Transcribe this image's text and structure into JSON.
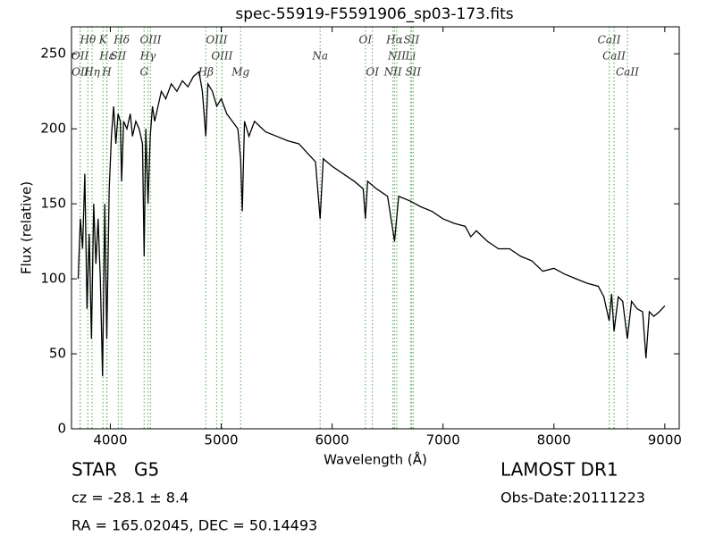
{
  "chart_data": {
    "type": "line",
    "title": "spec-55919-F5591906_sp03-173.fits",
    "x_label": "Wavelength (Å)",
    "y_label": "Flux (relative)",
    "xlim": [
      3650,
      9130
    ],
    "ylim": [
      0,
      268
    ],
    "xticks": [
      4000,
      5000,
      6000,
      7000,
      8000,
      9000
    ],
    "yticks": [
      0,
      50,
      100,
      150,
      200,
      250
    ],
    "series": [
      {
        "color": "#000000",
        "x": [
          3710,
          3730,
          3750,
          3770,
          3790,
          3810,
          3830,
          3850,
          3870,
          3890,
          3910,
          3930,
          3950,
          3968,
          3990,
          4010,
          4030,
          4050,
          4070,
          4090,
          4102,
          4120,
          4150,
          4180,
          4200,
          4230,
          4260,
          4290,
          4305,
          4320,
          4340,
          4360,
          4380,
          4400,
          4430,
          4460,
          4500,
          4550,
          4600,
          4650,
          4700,
          4750,
          4800,
          4830,
          4861,
          4880,
          4920,
          4960,
          5000,
          5050,
          5100,
          5150,
          5175,
          5190,
          5210,
          5250,
          5300,
          5400,
          5500,
          5600,
          5700,
          5800,
          5850,
          5892,
          5920,
          6000,
          6100,
          6200,
          6280,
          6300,
          6320,
          6400,
          6500,
          6563,
          6600,
          6700,
          6800,
          6900,
          7000,
          7100,
          7200,
          7250,
          7300,
          7400,
          7500,
          7600,
          7700,
          7800,
          7900,
          8000,
          8100,
          8200,
          8300,
          8400,
          8450,
          8498,
          8520,
          8542,
          8580,
          8620,
          8662,
          8700,
          8750,
          8800,
          8830,
          8860,
          8900,
          8950,
          9000
        ],
        "values": [
          100,
          140,
          120,
          170,
          80,
          130,
          60,
          150,
          110,
          140,
          100,
          35,
          150,
          60,
          160,
          195,
          215,
          190,
          210,
          205,
          165,
          205,
          200,
          210,
          195,
          205,
          200,
          190,
          115,
          200,
          150,
          195,
          215,
          205,
          215,
          225,
          220,
          230,
          225,
          232,
          228,
          235,
          238,
          225,
          195,
          230,
          225,
          215,
          220,
          210,
          205,
          200,
          180,
          145,
          205,
          195,
          205,
          198,
          195,
          192,
          190,
          182,
          178,
          140,
          180,
          175,
          170,
          165,
          160,
          140,
          165,
          160,
          155,
          125,
          155,
          152,
          148,
          145,
          140,
          137,
          135,
          128,
          132,
          125,
          120,
          120,
          115,
          112,
          105,
          107,
          103,
          100,
          97,
          95,
          88,
          72,
          90,
          65,
          88,
          85,
          60,
          85,
          80,
          78,
          47,
          78,
          75,
          78,
          82
        ]
      }
    ],
    "lines_color": "#6ab46a",
    "lines": [
      {
        "label": "Hθ",
        "wavelength": 3798
      },
      {
        "label": "K",
        "wavelength": 3934
      },
      {
        "label": "Hδ",
        "wavelength": 4102
      },
      {
        "label": "OIII",
        "wavelength": 4363
      },
      {
        "label": "OIII",
        "wavelength": 4959
      },
      {
        "label": "OI",
        "wavelength": 6300
      },
      {
        "label": "Hα",
        "wavelength": 6563
      },
      {
        "label": "SII",
        "wavelength": 6716
      },
      {
        "label": "CaII",
        "wavelength": 8498
      },
      {
        "label": "OII",
        "wavelength": 3727
      },
      {
        "label": "Hε",
        "wavelength": 3970
      },
      {
        "label": "SII",
        "wavelength": 4072
      },
      {
        "label": "Hγ",
        "wavelength": 4340
      },
      {
        "label": "OIII",
        "wavelength": 5007
      },
      {
        "label": "Na",
        "wavelength": 5892
      },
      {
        "label": "NII",
        "wavelength": 6583
      },
      {
        "label": "Li",
        "wavelength": 6708
      },
      {
        "label": "CaII",
        "wavelength": 8542
      },
      {
        "label": "OII",
        "wavelength": 3729
      },
      {
        "label": "Hη",
        "wavelength": 3835
      },
      {
        "label": "H",
        "wavelength": 3968
      },
      {
        "label": "G",
        "wavelength": 4305
      },
      {
        "label": "Hβ",
        "wavelength": 4861
      },
      {
        "label": "Mg",
        "wavelength": 5175
      },
      {
        "label": "OI",
        "wavelength": 6363
      },
      {
        "label": "NII",
        "wavelength": 6548
      },
      {
        "label": "SII",
        "wavelength": 6731
      },
      {
        "label": "CaII",
        "wavelength": 8662
      }
    ]
  },
  "info": {
    "object": "STAR   G5",
    "cz": "cz = -28.1 ± 8.4",
    "coords": "RA = 165.02045, DEC = 50.14493",
    "survey": "LAMOST DR1",
    "obs_date": "Obs-Date:20111223"
  }
}
